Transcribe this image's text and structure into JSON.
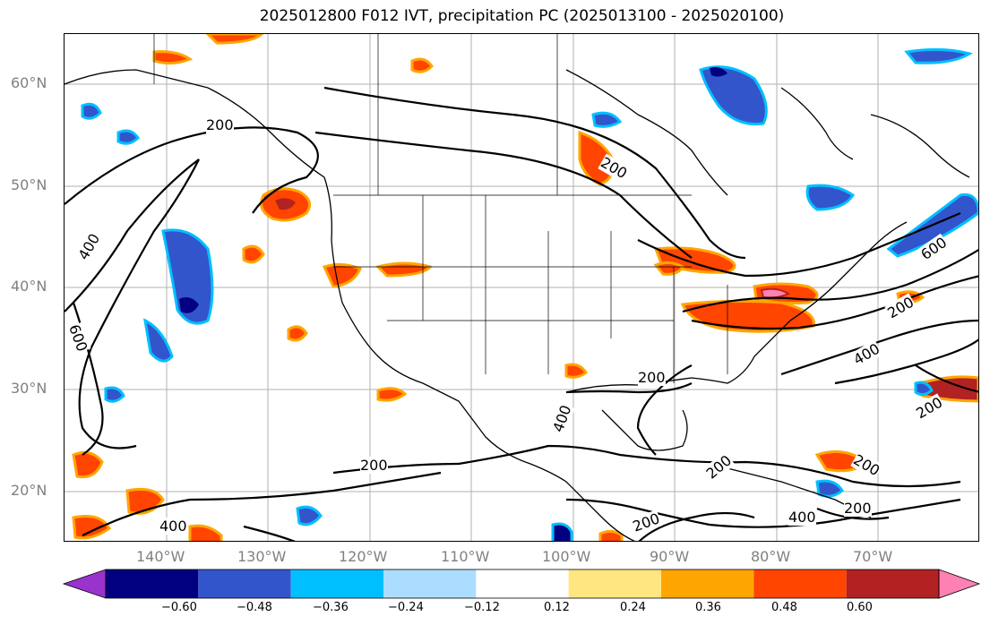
{
  "title": "2025012800 F012 IVT, precipitation PC (2025013100 - 2025020100)",
  "lat_ticks": [
    "60°N",
    "50°N",
    "40°N",
    "30°N",
    "20°N"
  ],
  "lon_ticks": [
    "140°W",
    "130°W",
    "120°W",
    "110°W",
    "100°W",
    "90°W",
    "80°W",
    "70°W"
  ],
  "contour_labels": [
    "200",
    "400",
    "600",
    "400",
    "200",
    "200",
    "200",
    "400",
    "600",
    "200",
    "400",
    "200",
    "200",
    "200",
    "400",
    "200",
    "200",
    "400",
    "200",
    "200",
    "400"
  ],
  "colorbar": {
    "tick_labels": [
      "−0.60",
      "−0.48",
      "−0.36",
      "−0.24",
      "−0.12",
      "0.12",
      "0.24",
      "0.36",
      "0.48",
      "0.60"
    ],
    "colors": [
      "#9933cc",
      "#000080",
      "#3355cc",
      "#00bfff",
      "#aaddff",
      "#ffffff",
      "#ffe680",
      "#ffa500",
      "#ff4500",
      "#b22222",
      "#ff80b3"
    ]
  }
}
